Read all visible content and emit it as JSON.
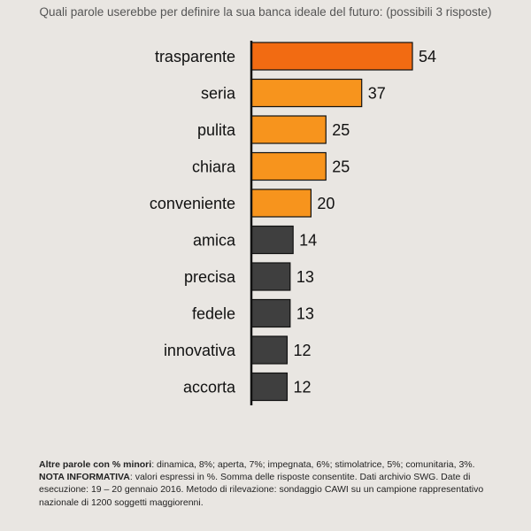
{
  "chart_data": {
    "type": "bar",
    "orientation": "horizontal",
    "title": "Quali parole userebbe per definire la sua banca ideale del futuro: (possibili 3 risposte)",
    "categories": [
      "trasparente",
      "seria",
      "pulita",
      "chiara",
      "conveniente",
      "amica",
      "precisa",
      "fedele",
      "innovativa",
      "accorta"
    ],
    "values": [
      54,
      37,
      25,
      25,
      20,
      14,
      13,
      13,
      12,
      12
    ],
    "colors": [
      "#f26b12",
      "#f7941d",
      "#f7941d",
      "#f7941d",
      "#f7941d",
      "#3f3f3f",
      "#3f3f3f",
      "#3f3f3f",
      "#3f3f3f",
      "#3f3f3f"
    ],
    "xlim": [
      0,
      54
    ],
    "grid": false,
    "legend": "none"
  },
  "notes": {
    "other_label": "Altre parole con % minori",
    "other_text": ": dinamica, 8%; aperta, 7%; impegnata, 6%; stimolatrice, 5%; comunitaria, 3%.",
    "info_label": "NOTA INFORMATIVA",
    "info_text": ": valori espressi in %. Somma delle risposte consentite. Dati archivio SWG. Date di esecuzione: 19 – 20 gennaio 2016. Metodo di rilevazione: sondaggio CAWI su un campione rappresentativo nazionale di 1200 soggetti maggiorenni."
  }
}
